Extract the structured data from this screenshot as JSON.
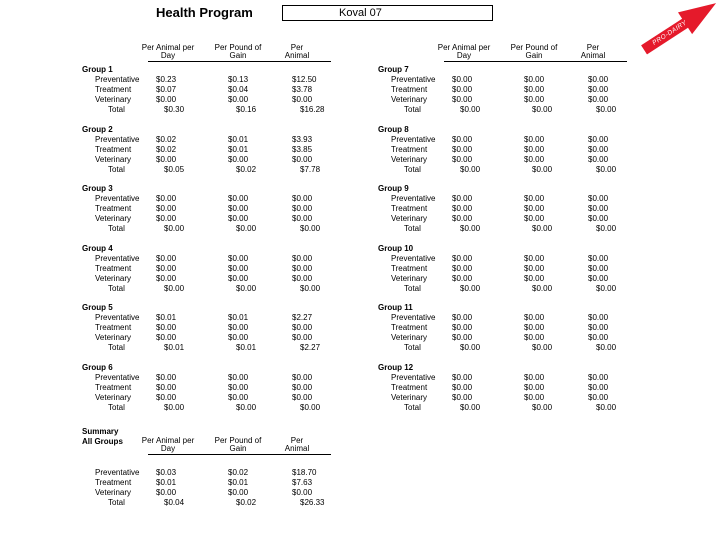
{
  "header": {
    "title": "Health Program",
    "herd_name": "Koval 07",
    "badge_text": "PRO-DAIRY",
    "badge_color": "#e51a2b"
  },
  "columns": [
    {
      "line1": "Per Animal per",
      "line2": "Day"
    },
    {
      "line1": "Per Pound of",
      "line2": "Gain"
    },
    {
      "line1": "Per",
      "line2": "Animal"
    }
  ],
  "row_labels": [
    "Preventative",
    "Treatment",
    "Veterinary",
    "Total"
  ],
  "groups": [
    {
      "name": "Group 1",
      "rows": [
        [
          "$0.23",
          "$0.13",
          "$12.50"
        ],
        [
          "$0.07",
          "$0.04",
          "$3.78"
        ],
        [
          "$0.00",
          "$0.00",
          "$0.00"
        ],
        [
          "$0.30",
          "$0.16",
          "$16.28"
        ]
      ]
    },
    {
      "name": "Group 2",
      "rows": [
        [
          "$0.02",
          "$0.01",
          "$3.93"
        ],
        [
          "$0.02",
          "$0.01",
          "$3.85"
        ],
        [
          "$0.00",
          "$0.00",
          "$0.00"
        ],
        [
          "$0.05",
          "$0.02",
          "$7.78"
        ]
      ]
    },
    {
      "name": "Group 3",
      "rows": [
        [
          "$0.00",
          "$0.00",
          "$0.00"
        ],
        [
          "$0.00",
          "$0.00",
          "$0.00"
        ],
        [
          "$0.00",
          "$0.00",
          "$0.00"
        ],
        [
          "$0.00",
          "$0.00",
          "$0.00"
        ]
      ]
    },
    {
      "name": "Group 4",
      "rows": [
        [
          "$0.00",
          "$0.00",
          "$0.00"
        ],
        [
          "$0.00",
          "$0.00",
          "$0.00"
        ],
        [
          "$0.00",
          "$0.00",
          "$0.00"
        ],
        [
          "$0.00",
          "$0.00",
          "$0.00"
        ]
      ]
    },
    {
      "name": "Group 5",
      "rows": [
        [
          "$0.01",
          "$0.01",
          "$2.27"
        ],
        [
          "$0.00",
          "$0.00",
          "$0.00"
        ],
        [
          "$0.00",
          "$0.00",
          "$0.00"
        ],
        [
          "$0.01",
          "$0.01",
          "$2.27"
        ]
      ]
    },
    {
      "name": "Group 6",
      "rows": [
        [
          "$0.00",
          "$0.00",
          "$0.00"
        ],
        [
          "$0.00",
          "$0.00",
          "$0.00"
        ],
        [
          "$0.00",
          "$0.00",
          "$0.00"
        ],
        [
          "$0.00",
          "$0.00",
          "$0.00"
        ]
      ]
    },
    {
      "name": "Group 7",
      "rows": [
        [
          "$0.00",
          "$0.00",
          "$0.00"
        ],
        [
          "$0.00",
          "$0.00",
          "$0.00"
        ],
        [
          "$0.00",
          "$0.00",
          "$0.00"
        ],
        [
          "$0.00",
          "$0.00",
          "$0.00"
        ]
      ]
    },
    {
      "name": "Group 8",
      "rows": [
        [
          "$0.00",
          "$0.00",
          "$0.00"
        ],
        [
          "$0.00",
          "$0.00",
          "$0.00"
        ],
        [
          "$0.00",
          "$0.00",
          "$0.00"
        ],
        [
          "$0.00",
          "$0.00",
          "$0.00"
        ]
      ]
    },
    {
      "name": "Group 9",
      "rows": [
        [
          "$0.00",
          "$0.00",
          "$0.00"
        ],
        [
          "$0.00",
          "$0.00",
          "$0.00"
        ],
        [
          "$0.00",
          "$0.00",
          "$0.00"
        ],
        [
          "$0.00",
          "$0.00",
          "$0.00"
        ]
      ]
    },
    {
      "name": "Group 10",
      "rows": [
        [
          "$0.00",
          "$0.00",
          "$0.00"
        ],
        [
          "$0.00",
          "$0.00",
          "$0.00"
        ],
        [
          "$0.00",
          "$0.00",
          "$0.00"
        ],
        [
          "$0.00",
          "$0.00",
          "$0.00"
        ]
      ]
    },
    {
      "name": "Group 11",
      "rows": [
        [
          "$0.00",
          "$0.00",
          "$0.00"
        ],
        [
          "$0.00",
          "$0.00",
          "$0.00"
        ],
        [
          "$0.00",
          "$0.00",
          "$0.00"
        ],
        [
          "$0.00",
          "$0.00",
          "$0.00"
        ]
      ]
    },
    {
      "name": "Group 12",
      "rows": [
        [
          "$0.00",
          "$0.00",
          "$0.00"
        ],
        [
          "$0.00",
          "$0.00",
          "$0.00"
        ],
        [
          "$0.00",
          "$0.00",
          "$0.00"
        ],
        [
          "$0.00",
          "$0.00",
          "$0.00"
        ]
      ]
    }
  ],
  "summary": {
    "title_line1": "Summary",
    "title_line2": "All Groups",
    "rows": [
      [
        "$0.03",
        "$0.02",
        "$18.70"
      ],
      [
        "$0.01",
        "$0.01",
        "$7.63"
      ],
      [
        "$0.00",
        "$0.00",
        "$0.00"
      ],
      [
        "$0.04",
        "$0.02",
        "$26.33"
      ]
    ]
  }
}
